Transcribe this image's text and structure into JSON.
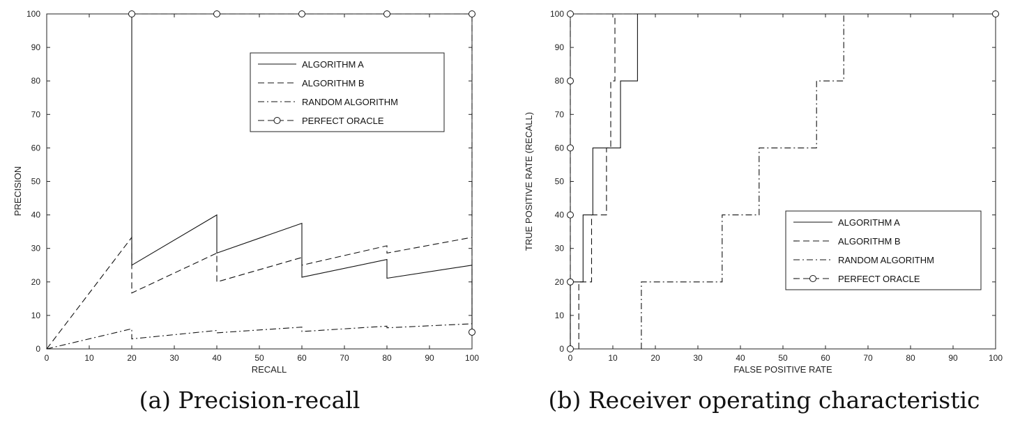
{
  "chart_data": [
    {
      "type": "line",
      "xlabel": "RECALL",
      "ylabel": "PRECISION",
      "caption": "(a) Precision-recall",
      "xlim": [
        0,
        100
      ],
      "ylim": [
        0,
        100
      ],
      "xticks": [
        0,
        10,
        20,
        30,
        40,
        50,
        60,
        70,
        80,
        90,
        100
      ],
      "yticks": [
        0,
        10,
        20,
        30,
        40,
        50,
        60,
        70,
        80,
        90,
        100
      ],
      "grid": false,
      "legend_position": "top-right",
      "series": [
        {
          "name": "ALGORITHM A",
          "style": "solid",
          "x": [
            20,
            20,
            40,
            40,
            60,
            60,
            80,
            80,
            100,
            100
          ],
          "y": [
            100,
            25,
            40,
            28.6,
            37.5,
            21.4,
            26.7,
            21.1,
            25,
            5
          ]
        },
        {
          "name": "ALGORITHM B",
          "style": "dashed",
          "x": [
            0,
            20,
            20,
            40,
            40,
            60,
            60,
            80,
            80,
            100
          ],
          "y": [
            0,
            33.3,
            16.7,
            28.6,
            20,
            27.3,
            25,
            30.8,
            28.6,
            33.3
          ]
        },
        {
          "name": "RANDOM ALGORITHM",
          "style": "dashdot",
          "x": [
            0,
            20,
            20,
            40,
            40,
            60,
            60,
            80,
            80,
            100
          ],
          "y": [
            0,
            6,
            3,
            5.5,
            4.8,
            6.5,
            5.2,
            6.8,
            6.3,
            7.5
          ]
        },
        {
          "name": "PERFECT ORACLE",
          "style": "dashed-circle",
          "x": [
            20,
            40,
            60,
            80,
            100,
            100
          ],
          "y": [
            100,
            100,
            100,
            100,
            100,
            5
          ]
        }
      ]
    },
    {
      "type": "line",
      "xlabel": "FALSE POSITIVE RATE",
      "ylabel": "TRUE POSITIVE RATE (RECALL)",
      "caption": "(b) Receiver operating characteristic",
      "xlim": [
        0,
        100
      ],
      "ylim": [
        0,
        100
      ],
      "xticks": [
        0,
        10,
        20,
        30,
        40,
        50,
        60,
        70,
        80,
        90,
        100
      ],
      "yticks": [
        0,
        10,
        20,
        30,
        40,
        50,
        60,
        70,
        80,
        90,
        100
      ],
      "grid": false,
      "legend_position": "bottom-right",
      "series": [
        {
          "name": "ALGORITHM A",
          "style": "solid",
          "x": [
            0,
            0,
            3,
            3,
            5.3,
            5.3,
            11.8,
            11.8,
            15.8,
            15.8,
            100
          ],
          "y": [
            0,
            20,
            20,
            40,
            40,
            60,
            60,
            80,
            80,
            100,
            100
          ]
        },
        {
          "name": "ALGORITHM B",
          "style": "dashed",
          "x": [
            2,
            2,
            5,
            5,
            8.5,
            8.5,
            9.5,
            9.5,
            10.5,
            10.5,
            100
          ],
          "y": [
            0,
            20,
            20,
            40,
            40,
            60,
            60,
            80,
            80,
            100,
            100
          ]
        },
        {
          "name": "RANDOM ALGORITHM",
          "style": "dashdot",
          "x": [
            16.7,
            16.7,
            35.7,
            35.7,
            44.4,
            44.4,
            57.9,
            57.9,
            64.3,
            64.3,
            100
          ],
          "y": [
            0,
            20,
            20,
            40,
            40,
            60,
            60,
            80,
            80,
            100,
            100
          ]
        },
        {
          "name": "PERFECT ORACLE",
          "style": "dashed-circle",
          "x": [
            0,
            0,
            0,
            0,
            0,
            0,
            100
          ],
          "y": [
            0,
            20,
            40,
            60,
            80,
            100,
            100
          ]
        }
      ]
    }
  ]
}
